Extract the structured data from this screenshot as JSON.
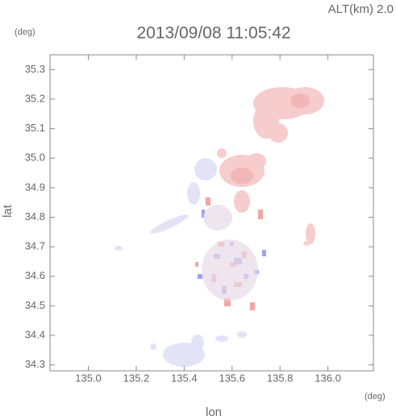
{
  "chart_data": {
    "type": "map",
    "title": "2013/09/08 11:05:42",
    "annotation": "ALT(km)  2.0",
    "xlabel": "lon",
    "ylabel": "lat",
    "xunit": "(deg)",
    "yunit": "(deg)",
    "xlim": [
      134.84,
      136.19
    ],
    "ylim": [
      34.28,
      35.35
    ],
    "xticks": [
      {
        "value": 135,
        "label": "135.0"
      },
      135.2,
      135.4,
      135.6,
      135.8,
      {
        "value": 136,
        "label": "136.0"
      }
    ],
    "yticks": [
      34.3,
      34.4,
      34.5,
      34.6,
      34.7,
      34.8,
      34.9,
      {
        "value": 35,
        "label": "35.0"
      },
      35.1,
      35.2,
      35.3
    ]
  }
}
